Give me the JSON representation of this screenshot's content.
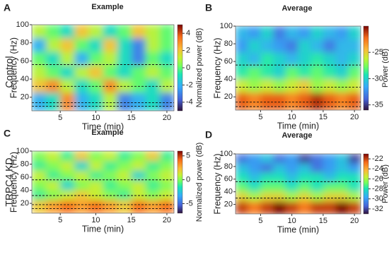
{
  "row_labels": [
    "Control",
    "TRPC4 KD"
  ],
  "chart_data": [
    {
      "type": "heatmap",
      "panel_label": "A",
      "title": "Example",
      "x_label": "Time (min)",
      "y_label": "Frequency (Hz)",
      "xlim": [
        1,
        21
      ],
      "xticks": [
        5,
        10,
        15,
        20
      ],
      "ylim": [
        5,
        100
      ],
      "yticks": [
        20,
        40,
        60,
        80,
        100
      ],
      "x_bins": [
        1,
        3,
        5,
        7,
        9,
        11,
        13,
        15,
        17,
        19,
        21
      ],
      "y_bins": [
        100,
        85,
        70,
        55,
        40,
        25,
        5
      ],
      "z": [
        [
          1,
          0,
          -1,
          2,
          1,
          -1,
          0,
          2,
          1,
          0
        ],
        [
          -2,
          1,
          2,
          0,
          -1,
          2,
          -1,
          -3,
          1,
          0
        ],
        [
          0,
          -1,
          1,
          -2,
          0,
          1,
          -1,
          -3,
          0,
          -1
        ],
        [
          1,
          0,
          -1,
          1,
          2,
          0,
          -1,
          0,
          1,
          0
        ],
        [
          2,
          3,
          1,
          -1,
          0,
          3,
          1,
          0,
          -1,
          1
        ],
        [
          -2,
          -1,
          3,
          -2,
          -1,
          1,
          -3,
          -2,
          -1,
          -3
        ]
      ],
      "band_lines": [
        56,
        32,
        14,
        10
      ],
      "colorbar": {
        "label": "Normalized power (dB)",
        "lim": [
          -5,
          5
        ],
        "ticks": [
          4,
          2,
          0,
          -2,
          -4
        ]
      }
    },
    {
      "type": "heatmap",
      "panel_label": "B",
      "title": "Average",
      "x_label": "Time (min)",
      "y_label": "Frequency (Hz)",
      "xlim": [
        1,
        21
      ],
      "xticks": [
        5,
        10,
        15,
        20
      ],
      "ylim": [
        5,
        100
      ],
      "yticks": [
        20,
        40,
        60,
        80,
        100
      ],
      "x_bins": [
        1,
        3,
        5,
        7,
        9,
        11,
        13,
        15,
        17,
        19,
        21
      ],
      "y_bins": [
        100,
        85,
        70,
        55,
        40,
        25,
        5
      ],
      "z": [
        [
          -31,
          -32,
          -30,
          -33,
          -31,
          -32,
          -30,
          -31,
          -32,
          -30
        ],
        [
          -32,
          -30,
          -31,
          -32,
          -33,
          -30,
          -31,
          -33,
          -31,
          -31
        ],
        [
          -30,
          -31,
          -29,
          -30,
          -31,
          -30,
          -29,
          -30,
          -31,
          -30
        ],
        [
          -29,
          -28,
          -29,
          -30,
          -28,
          -29,
          -28,
          -29,
          -30,
          -28
        ],
        [
          -26,
          -27,
          -26,
          -27,
          -26,
          -25,
          -27,
          -26,
          -27,
          -26
        ],
        [
          -22,
          -23,
          -22,
          -22,
          -23,
          -22,
          -21,
          -22,
          -23,
          -22
        ]
      ],
      "band_lines": [
        56,
        31,
        14,
        9
      ],
      "colorbar": {
        "label": "Power (dB)",
        "lim": [
          -36,
          -20
        ],
        "ticks": [
          -25,
          -30,
          -35
        ]
      }
    },
    {
      "type": "heatmap",
      "panel_label": "C",
      "title": "Example",
      "x_label": "Time (min)",
      "y_label": "Frequency (Hz)",
      "xlim": [
        1,
        21
      ],
      "xticks": [
        5,
        10,
        15,
        20
      ],
      "ylim": [
        5,
        100
      ],
      "yticks": [
        20,
        40,
        60,
        80,
        100
      ],
      "x_bins": [
        1,
        3,
        5,
        7,
        9,
        11,
        13,
        15,
        17,
        19,
        21
      ],
      "y_bins": [
        100,
        85,
        70,
        55,
        40,
        25,
        5
      ],
      "z": [
        [
          0,
          1,
          -1,
          2,
          0,
          1,
          -1,
          0,
          2,
          -1
        ],
        [
          -1,
          0,
          1,
          -2,
          1,
          -1,
          0,
          1,
          -1,
          0
        ],
        [
          1,
          -1,
          0,
          1,
          -1,
          0,
          1,
          -2,
          0,
          1
        ],
        [
          0,
          1,
          -2,
          0,
          1,
          -1,
          0,
          1,
          -1,
          0
        ],
        [
          -1,
          0,
          1,
          2,
          1,
          0,
          -1,
          1,
          0,
          1
        ],
        [
          2,
          3,
          4,
          3,
          4,
          3,
          2,
          4,
          3,
          4
        ]
      ],
      "band_lines": [
        56,
        32,
        18,
        12
      ],
      "colorbar": {
        "label": "Normalized power (dB)",
        "lim": [
          -7,
          6
        ],
        "ticks": [
          5,
          0,
          -5
        ]
      }
    },
    {
      "type": "heatmap",
      "panel_label": "D",
      "title": "Average",
      "x_label": "Time (min)",
      "y_label": "Frequency (Hz)",
      "xlim": [
        1,
        21
      ],
      "xticks": [
        5,
        10,
        15,
        20
      ],
      "ylim": [
        5,
        100
      ],
      "yticks": [
        20,
        40,
        60,
        80,
        100
      ],
      "x_bins": [
        1,
        3,
        5,
        7,
        9,
        11,
        13,
        15,
        17,
        19,
        21
      ],
      "y_bins": [
        100,
        85,
        70,
        55,
        40,
        25,
        5
      ],
      "z": [
        [
          -31,
          -30,
          -29,
          -31,
          -30,
          -32,
          -31,
          -30,
          -29,
          -32
        ],
        [
          -29,
          -30,
          -31,
          -29,
          -30,
          -29,
          -31,
          -30,
          -29,
          -30
        ],
        [
          -28,
          -29,
          -28,
          -28,
          -29,
          -28,
          -28,
          -29,
          -28,
          -28
        ],
        [
          -27,
          -28,
          -27,
          -27,
          -28,
          -27,
          -28,
          -27,
          -27,
          -28
        ],
        [
          -25,
          -26,
          -25,
          -25,
          -26,
          -25,
          -26,
          -25,
          -25,
          -26
        ],
        [
          -22,
          -23,
          -22,
          -21,
          -22,
          -23,
          -22,
          -22,
          -21,
          -22
        ]
      ],
      "band_lines": [
        56,
        30
      ],
      "colorbar": {
        "label": "Power (dB)",
        "lim": [
          -33,
          -21
        ],
        "ticks": [
          -22,
          -24,
          -26,
          -28,
          -30,
          -32
        ]
      }
    }
  ]
}
